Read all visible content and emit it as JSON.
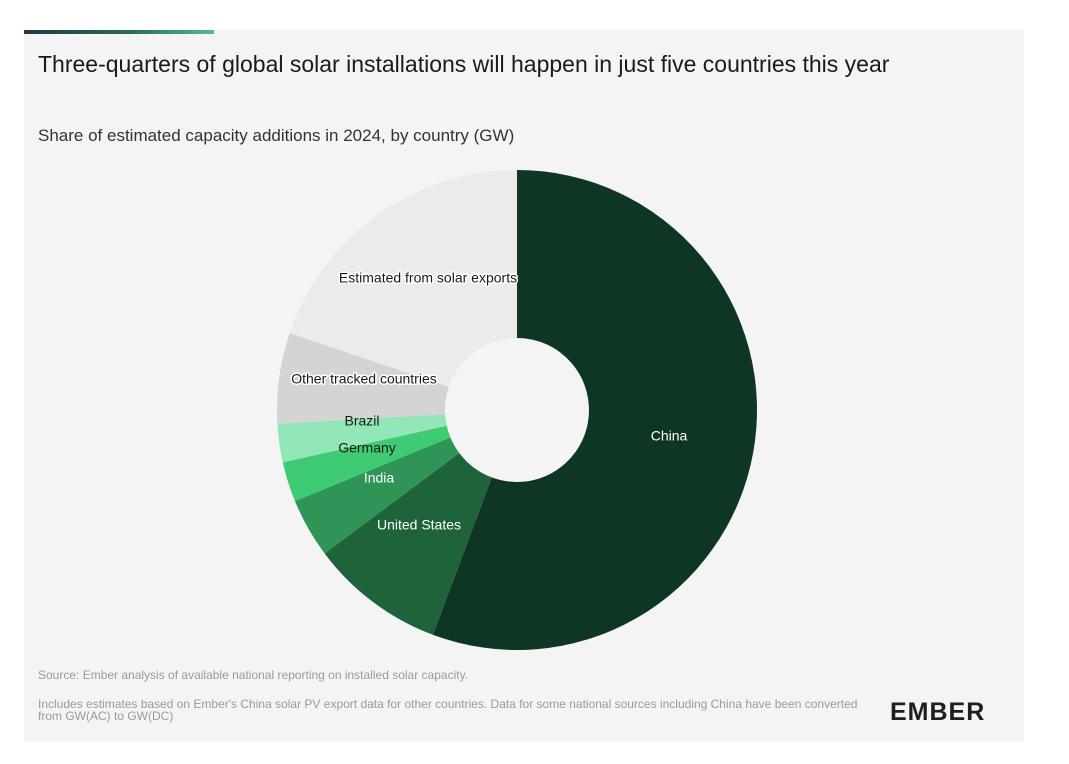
{
  "header": {
    "title": "Three-quarters of global solar installations will happen in just five countries this year",
    "subtitle": "Share of estimated capacity additions in 2024, by country (GW)"
  },
  "footer": {
    "source": "Source: Ember analysis of available national reporting on installed solar capacity.",
    "note": "Includes estimates based on Ember's China solar PV export data for other countries. Data for some national sources including China have been converted from GW(AC) to GW(DC)",
    "logo": "EMBER"
  },
  "colors": {
    "china": "#0f3622",
    "united_states": "#1e633a",
    "india": "#2e9556",
    "germany": "#3ecb74",
    "brazil": "#93e6b7",
    "other_tracked": "#d4d4d4",
    "estimated_exports": "#ebebeb",
    "background": "#f4f4f4",
    "accent": "#5ab987"
  },
  "chart_data": {
    "type": "pie",
    "style": "donut",
    "title": "Three-quarters of global solar installations will happen in just five countries this year",
    "subtitle": "Share of estimated capacity additions in 2024, by country (GW)",
    "unit": "%",
    "slices": [
      {
        "label": "China",
        "value": 55.7,
        "color": "#0f3622",
        "label_color": "#ffffff",
        "label_style": "plain"
      },
      {
        "label": "United States",
        "value": 9.1,
        "color": "#1e633a",
        "label_color": "#ffffff",
        "label_style": "plain"
      },
      {
        "label": "India",
        "value": 4.0,
        "color": "#2e9556",
        "label_color": "#ffffff",
        "label_style": "plain"
      },
      {
        "label": "Germany",
        "value": 2.7,
        "color": "#3ecb74",
        "label_color": "#1a1a1a",
        "label_style": "plain"
      },
      {
        "label": "Brazil",
        "value": 2.6,
        "color": "#93e6b7",
        "label_color": "#1a1a1a",
        "label_style": "plain"
      },
      {
        "label": "Other tracked countries",
        "value": 6.1,
        "color": "#d4d4d4",
        "label_color": "#1a1a1a",
        "label_style": "halo"
      },
      {
        "label": "Estimated from solar exports",
        "value": 19.8,
        "color": "#ebebeb",
        "label_color": "#1a1a1a",
        "label_style": "halo"
      }
    ]
  }
}
